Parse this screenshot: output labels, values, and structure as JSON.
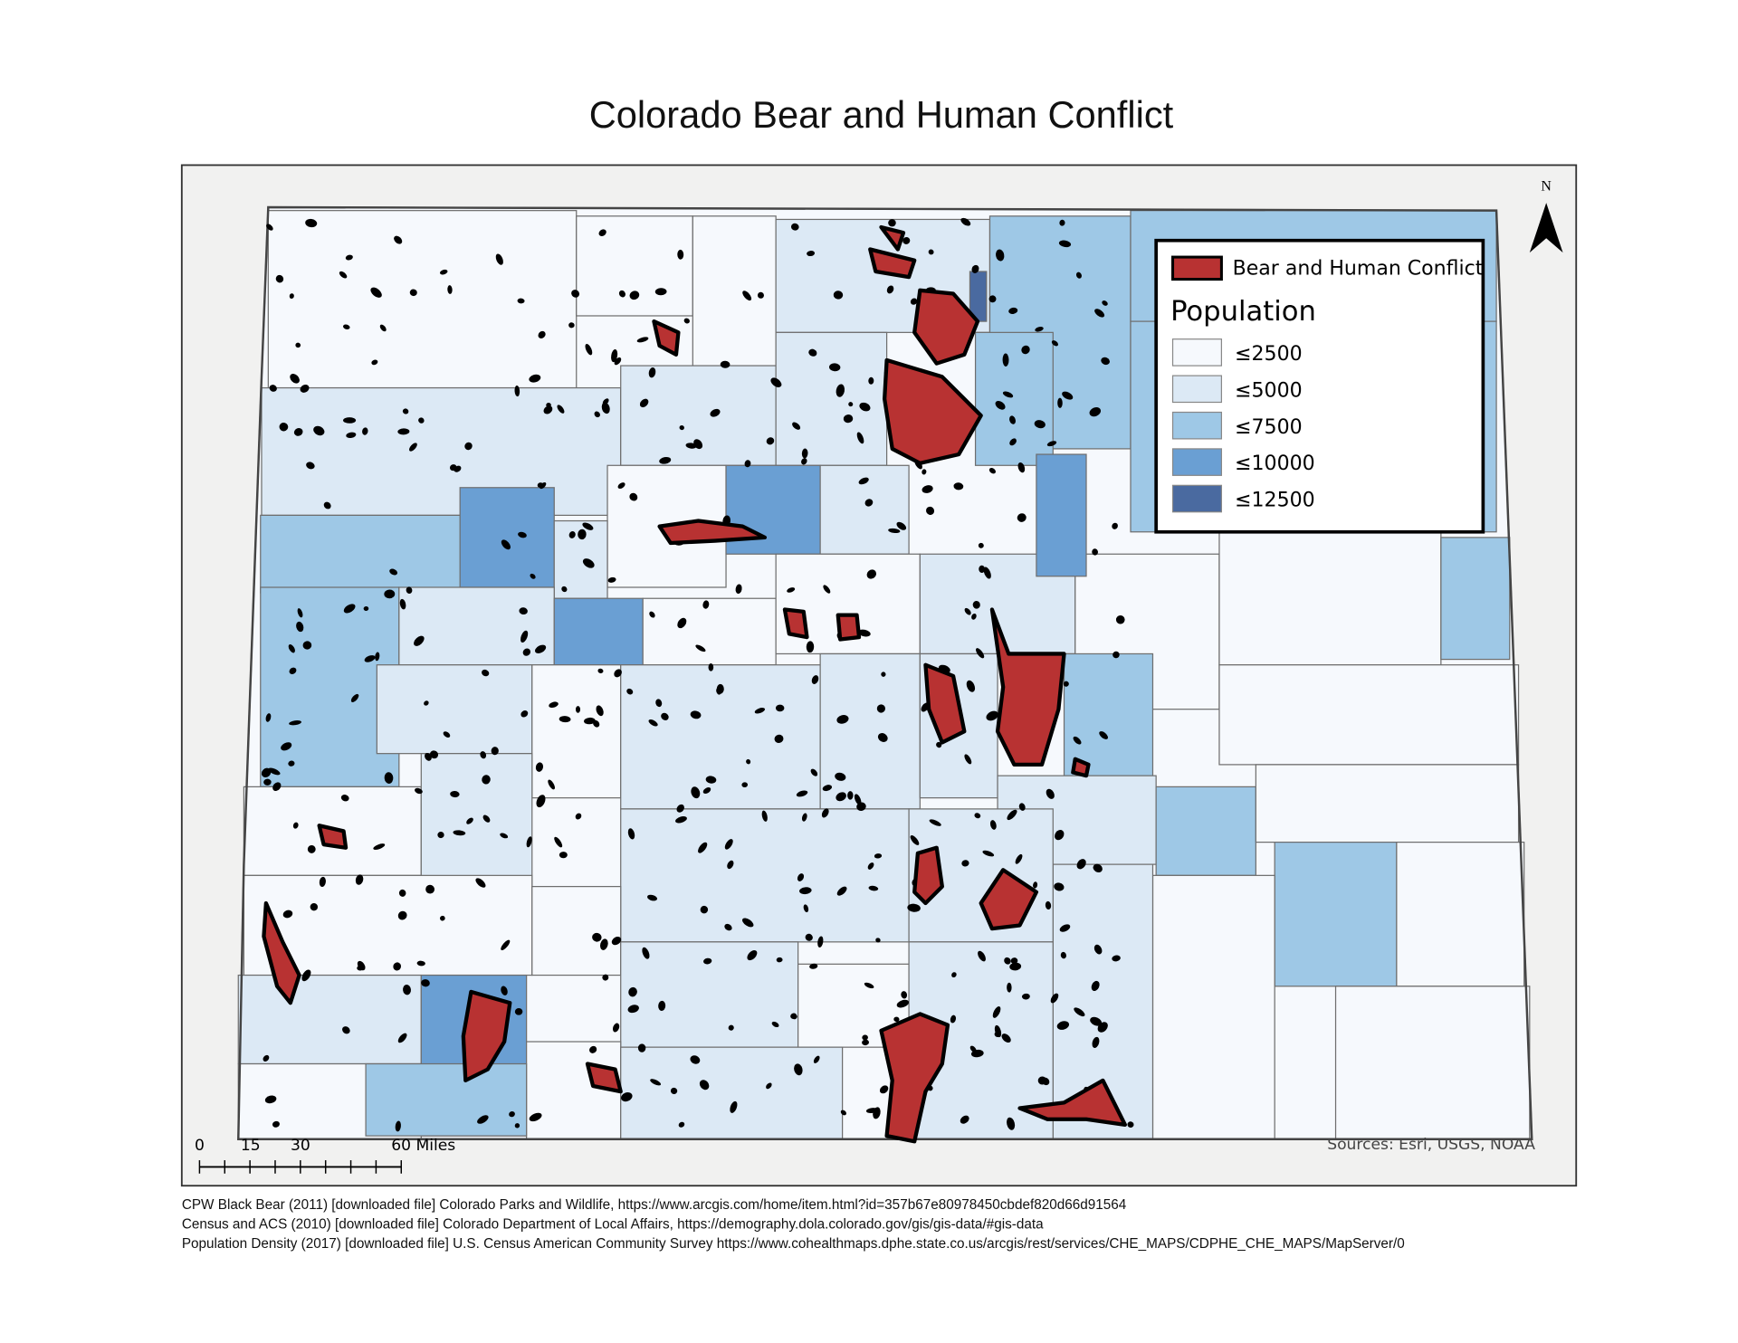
{
  "title": "Colorado Bear and Human Conflict",
  "north_arrow": "N",
  "legend": {
    "conflict_label": "Bear and Human Conflict",
    "population_title": "Population",
    "classes": [
      "≤2500",
      "≤5000",
      "≤7500",
      "≤10000",
      "≤12500"
    ]
  },
  "scale_bar": {
    "labels": [
      "0",
      "15",
      "30",
      "60 Miles"
    ]
  },
  "sources": "Sources: Esri, USGS, NOAA",
  "citations": [
    "CPW Black Bear (2011) [downloaded file] Colorado Parks and Wildlife, https://www.arcgis.com/home/item.html?id=357b67e80978450cbdef820d66d91564",
    "Census and ACS (2010) [downloaded file] Colorado Department of Local Affairs, https://demography.dola.colorado.gov/gis/gis-data/#gis-data",
    "Population Density (2017) [downloaded file] U.S. Census American Community Survey https://www.cohealthmaps.dphe.state.co.us/arcgis/rest/services/CHE_MAPS/CDPHE_CHE_MAPS/MapServer/0"
  ]
}
